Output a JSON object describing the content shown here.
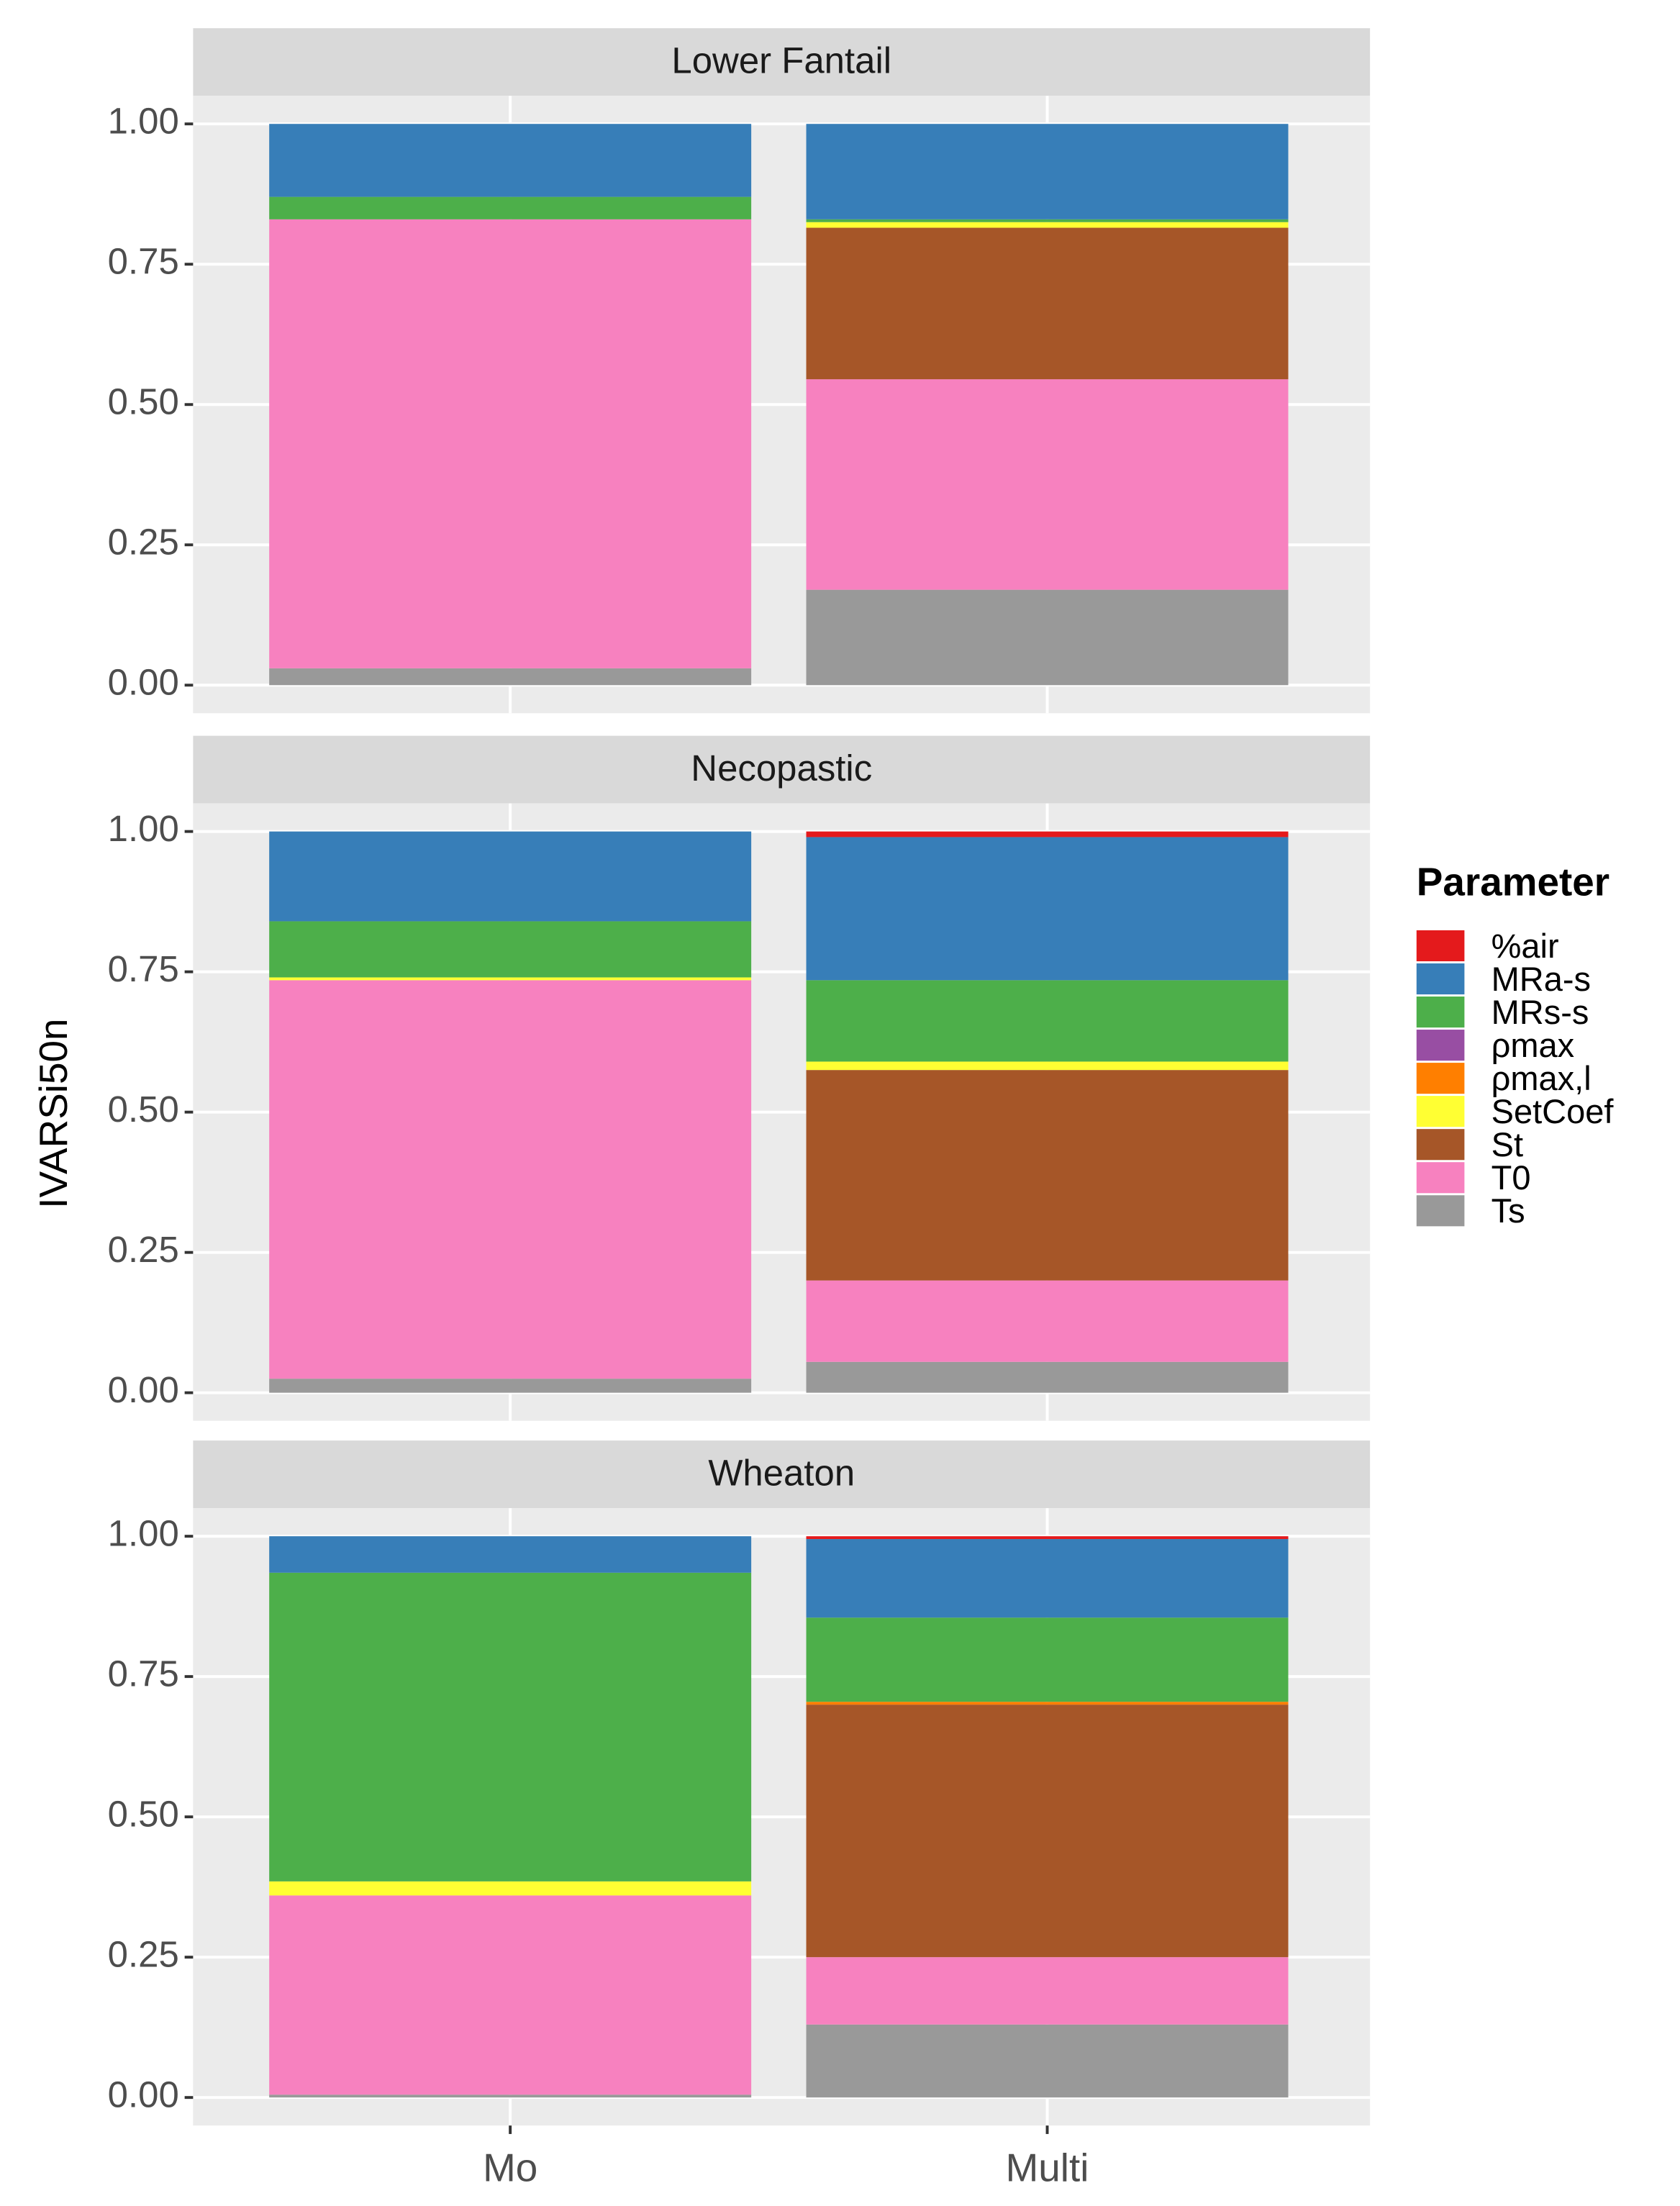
{
  "chart_data": [
    {
      "type": "bar",
      "stacked": true,
      "title": "Lower Fantail",
      "y_label": "IVARSi50n",
      "legend_title": "Parameter",
      "legend_position": "right",
      "grid": true,
      "categories": [
        "Mo",
        "Multi"
      ],
      "ylim": [
        -0.05,
        1.05
      ],
      "yticks": [
        {
          "value": 0,
          "label": "0.00"
        },
        {
          "value": 0.25,
          "label": "0.25"
        },
        {
          "value": 0.5,
          "label": "0.50"
        },
        {
          "value": 0.75,
          "label": "0.75"
        },
        {
          "value": 1,
          "label": "1.00"
        }
      ],
      "series": [
        {
          "name": "%air",
          "color": "#e41a1c",
          "values": [
            0,
            0
          ]
        },
        {
          "name": "MRa-s",
          "color": "#377eb8",
          "values": [
            0.13,
            0.17
          ]
        },
        {
          "name": "MRs-s",
          "color": "#4daf4a",
          "values": [
            0.04,
            0.005
          ]
        },
        {
          "name": "ρmax",
          "color": "#984ea3",
          "values": [
            0,
            0
          ]
        },
        {
          "name": "ρmax,l",
          "color": "#ff7f00",
          "values": [
            0,
            0
          ]
        },
        {
          "name": "SetCoef",
          "color": "#ffff33",
          "values": [
            0,
            0.01
          ]
        },
        {
          "name": "St",
          "color": "#a65628",
          "values": [
            0,
            0.27
          ]
        },
        {
          "name": "T0",
          "color": "#f781bf",
          "values": [
            0.8,
            0.375
          ]
        },
        {
          "name": "Ts",
          "color": "#999999",
          "values": [
            0.03,
            0.17
          ]
        }
      ]
    },
    {
      "type": "bar",
      "stacked": true,
      "title": "Necopastic",
      "grid": true,
      "categories": [
        "Mo",
        "Multi"
      ],
      "ylim": [
        -0.05,
        1.05
      ],
      "yticks": [
        {
          "value": 0,
          "label": "0.00"
        },
        {
          "value": 0.25,
          "label": "0.25"
        },
        {
          "value": 0.5,
          "label": "0.50"
        },
        {
          "value": 0.75,
          "label": "0.75"
        },
        {
          "value": 1,
          "label": "1.00"
        }
      ],
      "series": [
        {
          "name": "%air",
          "color": "#e41a1c",
          "values": [
            0,
            0.01
          ]
        },
        {
          "name": "MRa-s",
          "color": "#377eb8",
          "values": [
            0.16,
            0.255
          ]
        },
        {
          "name": "MRs-s",
          "color": "#4daf4a",
          "values": [
            0.1,
            0.145
          ]
        },
        {
          "name": "ρmax",
          "color": "#984ea3",
          "values": [
            0,
            0
          ]
        },
        {
          "name": "ρmax,l",
          "color": "#ff7f00",
          "values": [
            0,
            0
          ]
        },
        {
          "name": "SetCoef",
          "color": "#ffff33",
          "values": [
            0.005,
            0.015
          ]
        },
        {
          "name": "St",
          "color": "#a65628",
          "values": [
            0,
            0.375
          ]
        },
        {
          "name": "T0",
          "color": "#f781bf",
          "values": [
            0.71,
            0.145
          ]
        },
        {
          "name": "Ts",
          "color": "#999999",
          "values": [
            0.025,
            0.055
          ]
        }
      ]
    },
    {
      "type": "bar",
      "stacked": true,
      "title": "Wheaton",
      "grid": true,
      "categories": [
        "Mo",
        "Multi"
      ],
      "ylim": [
        -0.05,
        1.05
      ],
      "yticks": [
        {
          "value": 0,
          "label": "0.00"
        },
        {
          "value": 0.25,
          "label": "0.25"
        },
        {
          "value": 0.5,
          "label": "0.50"
        },
        {
          "value": 0.75,
          "label": "0.75"
        },
        {
          "value": 1,
          "label": "1.00"
        }
      ],
      "series": [
        {
          "name": "%air",
          "color": "#e41a1c",
          "values": [
            0,
            0.005
          ]
        },
        {
          "name": "MRa-s",
          "color": "#377eb8",
          "values": [
            0.065,
            0.14
          ]
        },
        {
          "name": "MRs-s",
          "color": "#4daf4a",
          "values": [
            0.55,
            0.15
          ]
        },
        {
          "name": "ρmax",
          "color": "#984ea3",
          "values": [
            0,
            0
          ]
        },
        {
          "name": "ρmax,l",
          "color": "#ff7f00",
          "values": [
            0,
            0.005
          ]
        },
        {
          "name": "SetCoef",
          "color": "#ffff33",
          "values": [
            0.025,
            0
          ]
        },
        {
          "name": "St",
          "color": "#a65628",
          "values": [
            0,
            0.45
          ]
        },
        {
          "name": "T0",
          "color": "#f781bf",
          "values": [
            0.355,
            0.12
          ]
        },
        {
          "name": "Ts",
          "color": "#999999",
          "values": [
            0.005,
            0.13
          ]
        }
      ]
    }
  ]
}
